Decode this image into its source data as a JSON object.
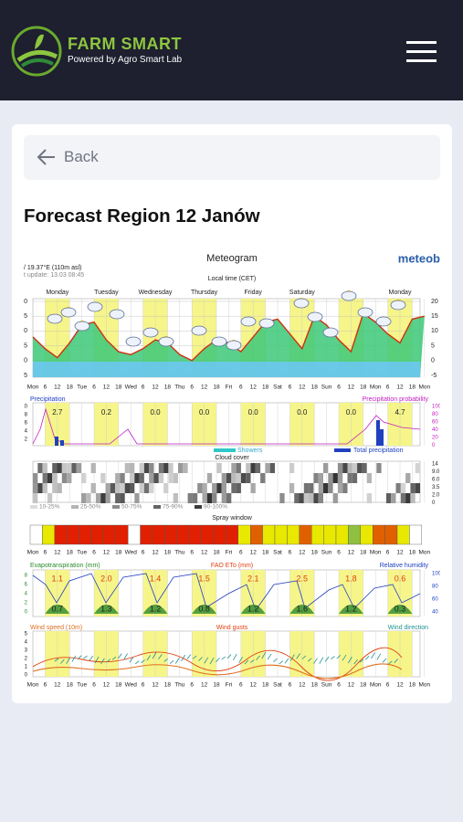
{
  "header": {
    "brand": "FARM SMART",
    "tagline": "Powered by Agro Smart Lab"
  },
  "back": "Back",
  "title": "Forecast Region 12 Janów",
  "meteogram": {
    "title": "Meteogram",
    "logo": "meteob",
    "location": "/ 19.37°E (110m asl)",
    "update": "t update: 13.03 08:45",
    "local_time": "Local time (CET)",
    "days": [
      "Monday",
      "Tuesday",
      "Wednesday",
      "Thursday",
      "Friday",
      "Saturday",
      "Monday"
    ],
    "day_slots": [
      2,
      6,
      10,
      14,
      18,
      22,
      30
    ],
    "time_labels": [
      "Mon",
      "6",
      "12",
      "18",
      "Tue",
      "6",
      "12",
      "18",
      "Wed",
      "6",
      "12",
      "18",
      "Thu",
      "6",
      "12",
      "18",
      "Fri",
      "6",
      "12",
      "18",
      "Sat",
      "6",
      "12",
      "18",
      "Sun",
      "6",
      "12",
      "18",
      "Mon",
      "6",
      "12",
      "18",
      "Mon"
    ],
    "temp_ticks": [
      20,
      15,
      10,
      5,
      0,
      -5
    ],
    "temperature": [
      8,
      4,
      1,
      6,
      12,
      13,
      7,
      3,
      2,
      4,
      7,
      6,
      2,
      0,
      4,
      7,
      6,
      3,
      8,
      13,
      14,
      9,
      4,
      15,
      12,
      7,
      3,
      16,
      13,
      9,
      6,
      14,
      15
    ],
    "precipitation": {
      "label": "Precipitation",
      "probability_label": "Precipitation probability",
      "daily": [
        "2.7",
        "0.2",
        "0.0",
        "0.0",
        "0.0",
        "0.0",
        "0.0",
        "4.7"
      ],
      "prob_ticks": [
        "100",
        "80",
        "60",
        "40",
        "20",
        "0"
      ],
      "left_ticks": [
        "10",
        "8",
        "6",
        "4",
        "2"
      ],
      "showers": "Showers",
      "total": "Total precipitation"
    },
    "cloud": {
      "label": "Cloud cover",
      "ticks": [
        "14",
        "9.0",
        "6.0",
        "3.5",
        "2.0",
        "0"
      ],
      "legend": [
        "10-25%",
        "25-50%",
        "50-75%",
        "75-90%",
        "90-100%"
      ]
    },
    "spray": {
      "label": "Spray window",
      "cells": [
        "#ffffff",
        "#e8e800",
        "#e02000",
        "#e02000",
        "#e02000",
        "#e02000",
        "#e02000",
        "#e02000",
        "#ffffff",
        "#e02000",
        "#e02000",
        "#e02000",
        "#e02000",
        "#e02000",
        "#e02000",
        "#e02000",
        "#e02000",
        "#e8e800",
        "#e06000",
        "#e8e800",
        "#e8e800",
        "#e8e800",
        "#e06000",
        "#e8e800",
        "#e8e800",
        "#e8e800",
        "#90c040",
        "#e8e800",
        "#e06000",
        "#e06000",
        "#e8e800",
        "#ffffff"
      ]
    },
    "et": {
      "label": "Evapotranspiration (mm)",
      "fao_label": "FAO ETo (mm)",
      "rh_label": "Relative humidity",
      "fao": [
        "1.1",
        "2.0",
        "1.4",
        "1.5",
        "2.1",
        "2.5",
        "1.8",
        "0.6"
      ],
      "et": [
        "0.7",
        "1.3",
        "1.2",
        "0.8",
        "1.2",
        "1.6",
        "1.2",
        "0.3"
      ],
      "rh_ticks": [
        "100",
        "80",
        "60",
        "40"
      ],
      "left_ticks": [
        "8",
        "6",
        "4",
        "2",
        "0"
      ]
    },
    "wind": {
      "speed_label": "Wind speed (10m)",
      "gusts_label": "Wind gusts",
      "direction_label": "Wind direction",
      "left_ticks": [
        "5",
        "4",
        "3",
        "2",
        "1",
        "0"
      ]
    }
  }
}
